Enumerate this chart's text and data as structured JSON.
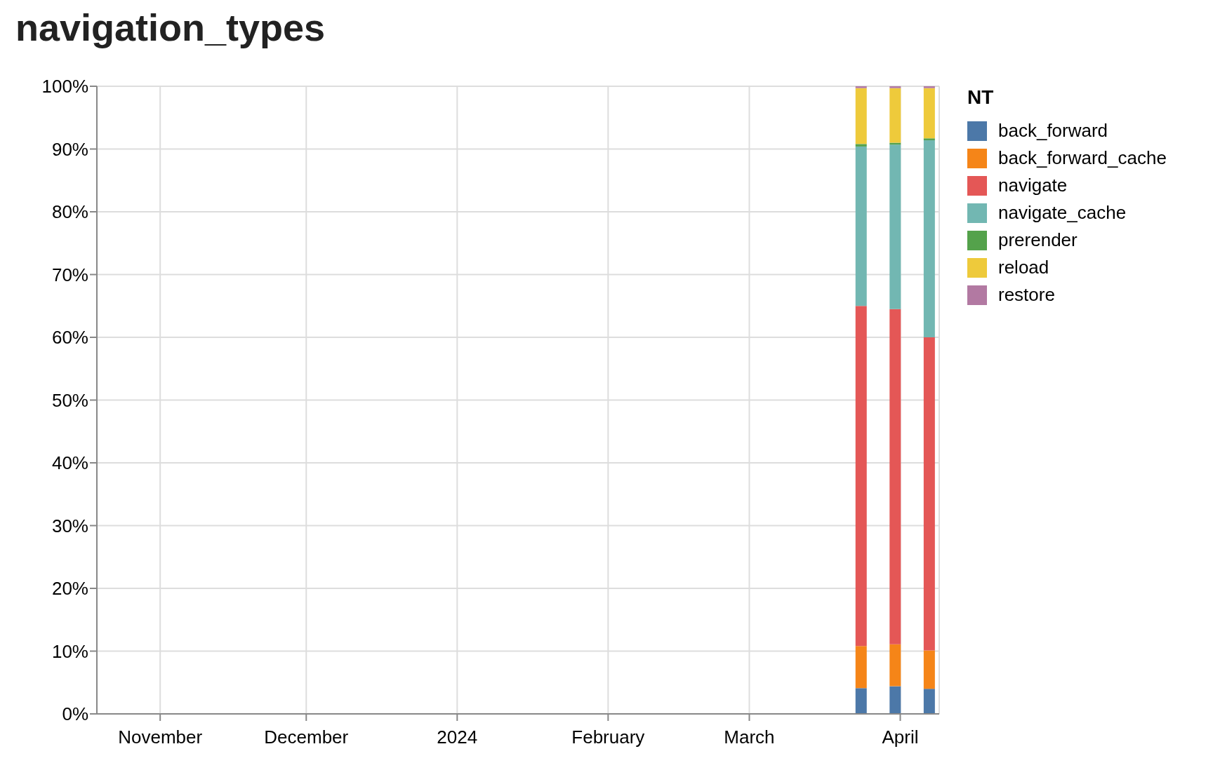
{
  "chart_data": {
    "type": "bar",
    "title": "navigation_types",
    "legend_title": "NT",
    "stacked": true,
    "grid": true,
    "legend": "top right",
    "x": [
      "2024-03-24",
      "2024-03-31",
      "2024-04-07"
    ],
    "xlim": [
      "2023-10-19",
      "2024-04-09"
    ],
    "xticks": [
      {
        "value": "2023-11-01",
        "label": "November"
      },
      {
        "value": "2023-12-01",
        "label": "December"
      },
      {
        "value": "2024-01-01",
        "label": "2024"
      },
      {
        "value": "2024-02-01",
        "label": "February"
      },
      {
        "value": "2024-03-01",
        "label": "March"
      },
      {
        "value": "2024-04-01",
        "label": "April"
      }
    ],
    "ylim": [
      0,
      100
    ],
    "yticks": [
      {
        "value": 0,
        "label": "0%"
      },
      {
        "value": 10,
        "label": "10%"
      },
      {
        "value": 20,
        "label": "20%"
      },
      {
        "value": 30,
        "label": "30%"
      },
      {
        "value": 40,
        "label": "40%"
      },
      {
        "value": 50,
        "label": "50%"
      },
      {
        "value": 60,
        "label": "60%"
      },
      {
        "value": 70,
        "label": "70%"
      },
      {
        "value": 80,
        "label": "80%"
      },
      {
        "value": 90,
        "label": "90%"
      },
      {
        "value": 100,
        "label": "100%"
      }
    ],
    "series": [
      {
        "name": "back_forward",
        "color": "#4c78a8",
        "values": [
          4.1,
          4.4,
          4.0
        ]
      },
      {
        "name": "back_forward_cache",
        "color": "#f58518",
        "values": [
          6.7,
          6.7,
          6.1
        ]
      },
      {
        "name": "navigate",
        "color": "#e45756",
        "values": [
          54.2,
          53.4,
          49.9
        ]
      },
      {
        "name": "navigate_cache",
        "color": "#72b7b2",
        "values": [
          25.4,
          26.2,
          31.4
        ]
      },
      {
        "name": "prerender",
        "color": "#54a24b",
        "values": [
          0.4,
          0.3,
          0.3
        ]
      },
      {
        "name": "reload",
        "color": "#eeca3b",
        "values": [
          8.9,
          8.7,
          8.0
        ]
      },
      {
        "name": "restore",
        "color": "#b279a2",
        "values": [
          0.3,
          0.3,
          0.3
        ]
      }
    ]
  }
}
